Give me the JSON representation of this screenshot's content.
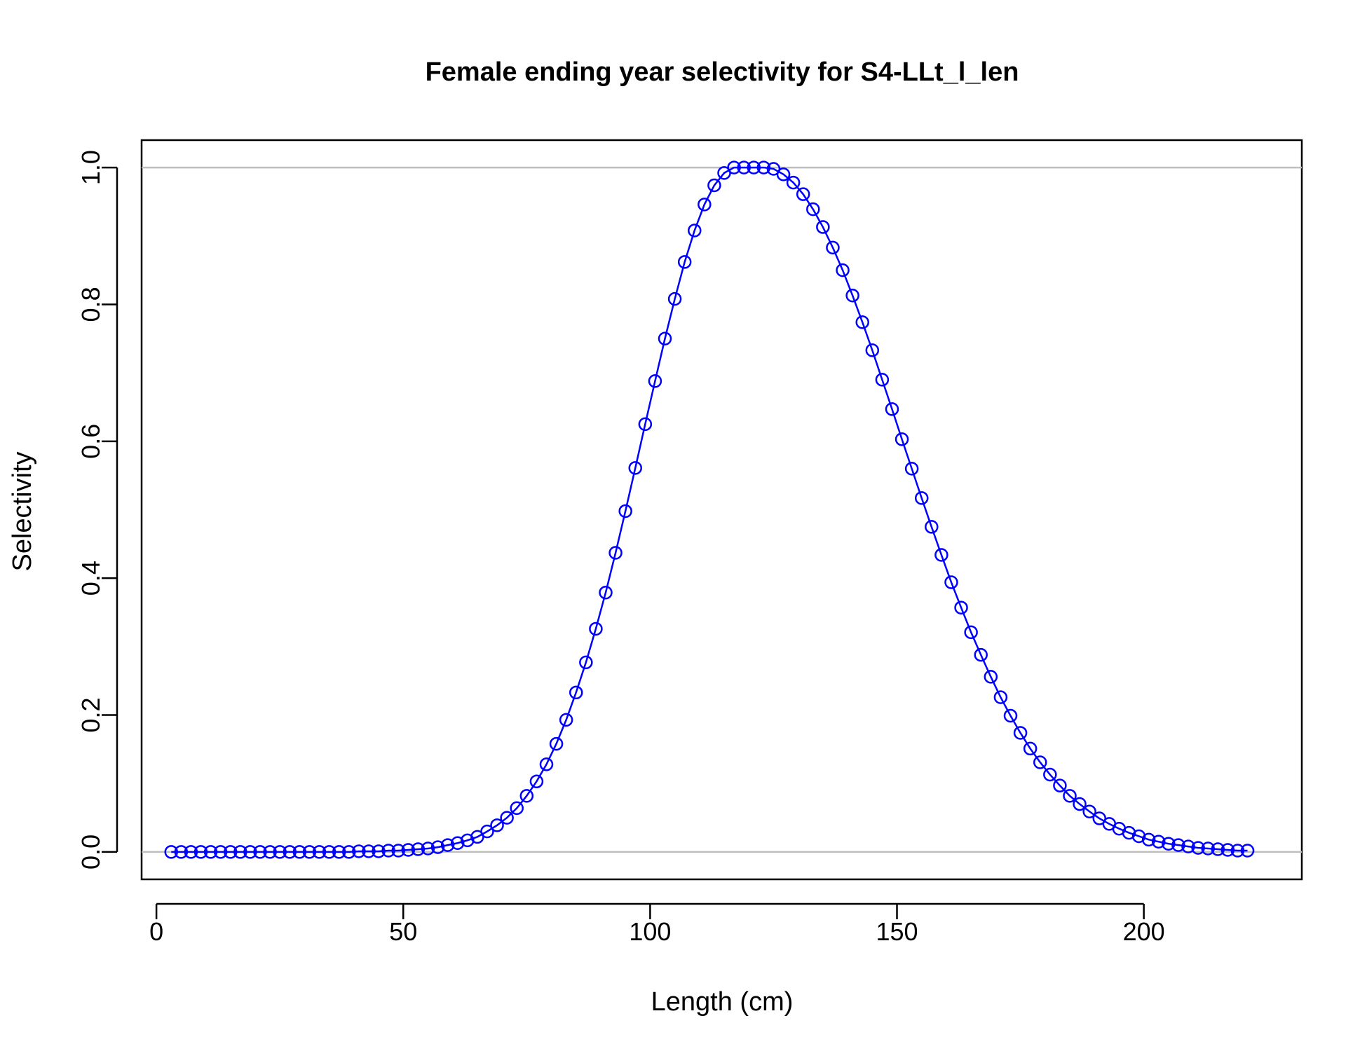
{
  "chart_data": {
    "type": "line",
    "title": "Female ending year selectivity for S4-LLt_l_len",
    "xlabel": "Length (cm)",
    "ylabel": "Selectivity",
    "xlim": [
      -3,
      232
    ],
    "ylim": [
      -0.04,
      1.04
    ],
    "x_ticks": [
      0,
      50,
      100,
      150,
      200
    ],
    "x_tick_labels": [
      "0",
      "50",
      "100",
      "150",
      "200"
    ],
    "y_ticks": [
      0.0,
      0.2,
      0.4,
      0.6,
      0.8,
      1.0
    ],
    "y_tick_labels": [
      "0.0",
      "0.2",
      "0.4",
      "0.6",
      "0.8",
      "1.0"
    ],
    "reference_lines": [
      0,
      1
    ],
    "grid": false,
    "legend": "none",
    "series": [
      {
        "color": "#0000ff",
        "marker": "open-circle",
        "x": [
          3,
          5,
          7,
          9,
          11,
          13,
          15,
          17,
          19,
          21,
          23,
          25,
          27,
          29,
          31,
          33,
          35,
          37,
          39,
          41,
          43,
          45,
          47,
          49,
          51,
          53,
          55,
          57,
          59,
          61,
          63,
          65,
          67,
          69,
          71,
          73,
          75,
          77,
          79,
          81,
          83,
          85,
          87,
          89,
          91,
          93,
          95,
          97,
          99,
          101,
          103,
          105,
          107,
          109,
          111,
          113,
          115,
          117,
          119,
          121,
          123,
          125,
          127,
          129,
          131,
          133,
          135,
          137,
          139,
          141,
          143,
          145,
          147,
          149,
          151,
          153,
          155,
          157,
          159,
          161,
          163,
          165,
          167,
          169,
          171,
          173,
          175,
          177,
          179,
          181,
          183,
          185,
          187,
          189,
          191,
          193,
          195,
          197,
          199,
          201,
          203,
          205,
          207,
          209,
          211,
          213,
          215,
          217,
          219,
          221
        ],
        "y": [
          0,
          0,
          0,
          0,
          0,
          0,
          0,
          0,
          0,
          0,
          0,
          0,
          0,
          0,
          0,
          0,
          0,
          0,
          0,
          0.001,
          0.001,
          0.001,
          0.002,
          0.002,
          0.003,
          0.004,
          0.005,
          0.007,
          0.01,
          0.013,
          0.017,
          0.022,
          0.03,
          0.039,
          0.05,
          0.064,
          0.082,
          0.103,
          0.128,
          0.158,
          0.193,
          0.233,
          0.277,
          0.326,
          0.379,
          0.437,
          0.498,
          0.561,
          0.625,
          0.688,
          0.75,
          0.808,
          0.862,
          0.908,
          0.946,
          0.974,
          0.992,
          1.0,
          1.0,
          1.0,
          1.0,
          0.998,
          0.99,
          0.978,
          0.961,
          0.939,
          0.913,
          0.883,
          0.85,
          0.813,
          0.774,
          0.733,
          0.69,
          0.647,
          0.603,
          0.56,
          0.517,
          0.475,
          0.434,
          0.394,
          0.357,
          0.321,
          0.288,
          0.256,
          0.226,
          0.199,
          0.174,
          0.151,
          0.131,
          0.113,
          0.097,
          0.082,
          0.07,
          0.059,
          0.049,
          0.041,
          0.034,
          0.028,
          0.023,
          0.018,
          0.015,
          0.012,
          0.01,
          0.008,
          0.006,
          0.005,
          0.004,
          0.003,
          0.002,
          0.002
        ]
      }
    ]
  },
  "colors": {
    "series": "#0000ff",
    "reference_line": "#bebebe",
    "axis": "#000000",
    "background": "#ffffff"
  }
}
